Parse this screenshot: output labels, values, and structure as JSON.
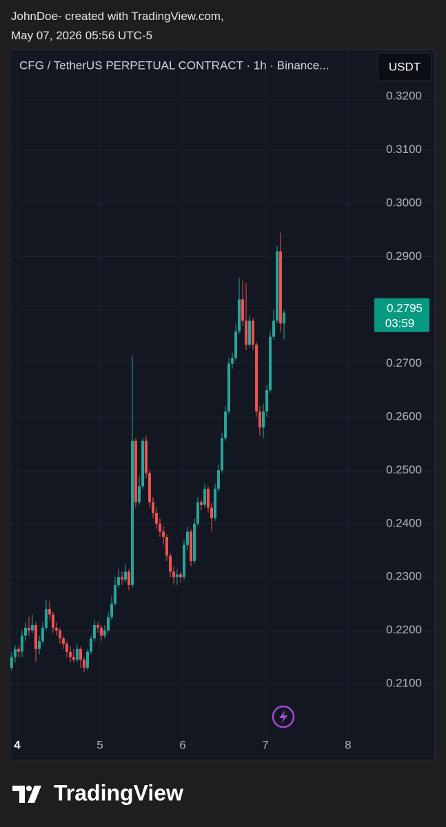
{
  "header": {
    "line1": "JohnDoe- created with TradingView.com,",
    "line2": "May 07, 2026 05:56 UTC-5"
  },
  "footer": {
    "brand": "TradingView"
  },
  "chart_data": {
    "type": "candlestick",
    "title": "CFG / TetherUS PERPETUAL CONTRACT · 1h · Binance...",
    "currency": "USDT",
    "up_color": "#26a69a",
    "down_color": "#ef5350",
    "grid": true,
    "xlim": [
      3.917,
      8.333
    ],
    "xticks": [
      4,
      5,
      6,
      7,
      8
    ],
    "ylim": [
      0.2006,
      0.3284
    ],
    "yticks": [
      {
        "value": 0.21,
        "label": "0.2100"
      },
      {
        "value": 0.22,
        "label": "0.2200"
      },
      {
        "value": 0.23,
        "label": "0.2300"
      },
      {
        "value": 0.24,
        "label": "0.2400"
      },
      {
        "value": 0.25,
        "label": "0.2500"
      },
      {
        "value": 0.26,
        "label": "0.2600"
      },
      {
        "value": 0.27,
        "label": "0.2700"
      },
      {
        "value": 0.28,
        "label": "0.2800"
      },
      {
        "value": 0.29,
        "label": "0.2900"
      },
      {
        "value": 0.3,
        "label": "0.3000"
      },
      {
        "value": 0.31,
        "label": "0.3100"
      },
      {
        "value": 0.32,
        "label": "0.3200"
      }
    ],
    "last_price": 0.2795,
    "countdown": "03:59",
    "x": [
      3.933,
      3.975,
      4.017,
      4.058,
      4.1,
      4.142,
      4.183,
      4.225,
      4.267,
      4.308,
      4.35,
      4.392,
      4.433,
      4.475,
      4.517,
      4.558,
      4.6,
      4.642,
      4.683,
      4.725,
      4.767,
      4.808,
      4.85,
      4.892,
      4.933,
      4.975,
      5.017,
      5.058,
      5.1,
      5.142,
      5.183,
      5.225,
      5.267,
      5.308,
      5.35,
      5.392,
      5.433,
      5.475,
      5.517,
      5.558,
      5.6,
      5.642,
      5.683,
      5.725,
      5.767,
      5.808,
      5.85,
      5.892,
      5.933,
      5.975,
      6.017,
      6.058,
      6.1,
      6.142,
      6.183,
      6.225,
      6.267,
      6.308,
      6.35,
      6.392,
      6.433,
      6.475,
      6.517,
      6.558,
      6.6,
      6.642,
      6.683,
      6.725,
      6.767,
      6.808,
      6.85,
      6.892,
      6.933,
      6.975,
      7.017,
      7.058,
      7.1,
      7.142,
      7.183,
      7.225
    ],
    "candles": [
      [
        0.213,
        0.216,
        0.2125,
        0.215
      ],
      [
        0.215,
        0.2172,
        0.214,
        0.2165
      ],
      [
        0.2165,
        0.217,
        0.215,
        0.216
      ],
      [
        0.216,
        0.22,
        0.215,
        0.219
      ],
      [
        0.219,
        0.2215,
        0.218,
        0.2205
      ],
      [
        0.2205,
        0.2225,
        0.219,
        0.22
      ],
      [
        0.22,
        0.223,
        0.2195,
        0.221
      ],
      [
        0.221,
        0.2215,
        0.214,
        0.2165
      ],
      [
        0.2165,
        0.219,
        0.2155,
        0.218
      ],
      [
        0.218,
        0.2215,
        0.2175,
        0.2205
      ],
      [
        0.2205,
        0.2258,
        0.22,
        0.224
      ],
      [
        0.224,
        0.2255,
        0.222,
        0.223
      ],
      [
        0.223,
        0.2235,
        0.2195,
        0.2205
      ],
      [
        0.2205,
        0.2215,
        0.219,
        0.22
      ],
      [
        0.22,
        0.2205,
        0.2175,
        0.2185
      ],
      [
        0.2185,
        0.219,
        0.2165,
        0.2175
      ],
      [
        0.2175,
        0.218,
        0.215,
        0.216
      ],
      [
        0.216,
        0.217,
        0.214,
        0.215
      ],
      [
        0.215,
        0.2165,
        0.214,
        0.2145
      ],
      [
        0.2145,
        0.2175,
        0.214,
        0.2165
      ],
      [
        0.2165,
        0.217,
        0.213,
        0.2145
      ],
      [
        0.2145,
        0.215,
        0.2122,
        0.213
      ],
      [
        0.213,
        0.2165,
        0.2125,
        0.216
      ],
      [
        0.216,
        0.219,
        0.2155,
        0.2185
      ],
      [
        0.2185,
        0.222,
        0.218,
        0.221
      ],
      [
        0.221,
        0.2215,
        0.2195,
        0.2205
      ],
      [
        0.2205,
        0.221,
        0.218,
        0.219
      ],
      [
        0.219,
        0.221,
        0.2185,
        0.22
      ],
      [
        0.22,
        0.2235,
        0.2195,
        0.2225
      ],
      [
        0.2225,
        0.2265,
        0.222,
        0.225
      ],
      [
        0.225,
        0.23,
        0.2245,
        0.2285
      ],
      [
        0.2285,
        0.2315,
        0.228,
        0.23
      ],
      [
        0.23,
        0.231,
        0.2285,
        0.2295
      ],
      [
        0.2295,
        0.2325,
        0.229,
        0.231
      ],
      [
        0.231,
        0.2315,
        0.2275,
        0.2285
      ],
      [
        0.2285,
        0.2715,
        0.228,
        0.2555
      ],
      [
        0.2555,
        0.256,
        0.243,
        0.244
      ],
      [
        0.244,
        0.249,
        0.2435,
        0.247
      ],
      [
        0.247,
        0.256,
        0.2465,
        0.2555
      ],
      [
        0.2555,
        0.2565,
        0.2485,
        0.2495
      ],
      [
        0.2495,
        0.25,
        0.243,
        0.244
      ],
      [
        0.244,
        0.245,
        0.241,
        0.242
      ],
      [
        0.242,
        0.243,
        0.239,
        0.24
      ],
      [
        0.24,
        0.241,
        0.2375,
        0.2385
      ],
      [
        0.2385,
        0.2395,
        0.236,
        0.2375
      ],
      [
        0.2375,
        0.238,
        0.233,
        0.234
      ],
      [
        0.234,
        0.2345,
        0.23,
        0.231
      ],
      [
        0.231,
        0.232,
        0.2285,
        0.23
      ],
      [
        0.23,
        0.2315,
        0.2285,
        0.2305
      ],
      [
        0.2305,
        0.231,
        0.229,
        0.23
      ],
      [
        0.23,
        0.237,
        0.2295,
        0.236
      ],
      [
        0.236,
        0.2395,
        0.235,
        0.2385
      ],
      [
        0.2385,
        0.239,
        0.232,
        0.233
      ],
      [
        0.233,
        0.241,
        0.2325,
        0.24
      ],
      [
        0.24,
        0.245,
        0.2395,
        0.244
      ],
      [
        0.244,
        0.2445,
        0.2425,
        0.2435
      ],
      [
        0.2435,
        0.2475,
        0.243,
        0.2465
      ],
      [
        0.2465,
        0.247,
        0.242,
        0.243
      ],
      [
        0.243,
        0.244,
        0.2385,
        0.241
      ],
      [
        0.241,
        0.2475,
        0.2405,
        0.2465
      ],
      [
        0.2465,
        0.251,
        0.246,
        0.25
      ],
      [
        0.25,
        0.257,
        0.2495,
        0.256
      ],
      [
        0.256,
        0.262,
        0.2555,
        0.261
      ],
      [
        0.261,
        0.271,
        0.2605,
        0.27
      ],
      [
        0.27,
        0.272,
        0.269,
        0.271
      ],
      [
        0.271,
        0.2775,
        0.2705,
        0.276
      ],
      [
        0.276,
        0.286,
        0.2755,
        0.282
      ],
      [
        0.282,
        0.2855,
        0.277,
        0.278
      ],
      [
        0.278,
        0.285,
        0.2725,
        0.2735
      ],
      [
        0.2735,
        0.279,
        0.273,
        0.278
      ],
      [
        0.278,
        0.2785,
        0.2725,
        0.2735
      ],
      [
        0.2735,
        0.274,
        0.26,
        0.261
      ],
      [
        0.261,
        0.262,
        0.2565,
        0.258
      ],
      [
        0.258,
        0.2625,
        0.256,
        0.261
      ],
      [
        0.261,
        0.266,
        0.26,
        0.265
      ],
      [
        0.265,
        0.276,
        0.2645,
        0.275
      ],
      [
        0.275,
        0.28,
        0.2745,
        0.278
      ],
      [
        0.278,
        0.292,
        0.2775,
        0.291
      ],
      [
        0.291,
        0.2945,
        0.276,
        0.2775
      ],
      [
        0.2775,
        0.28,
        0.2745,
        0.2795
      ]
    ]
  }
}
